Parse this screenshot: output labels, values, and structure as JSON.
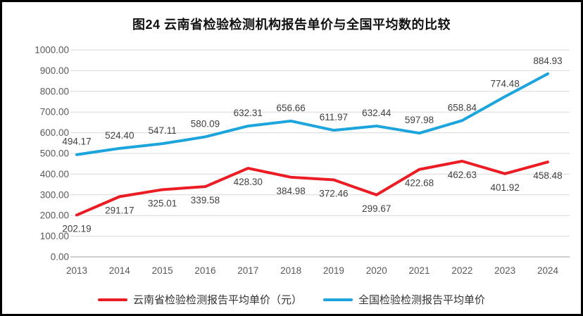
{
  "title": "图24 云南省检验检测机构报告单价与全国平均数的比较",
  "chart_data": {
    "type": "line",
    "title": "图24 云南省检验检测机构报告单价与全国平均数的比较",
    "categories": [
      "2013",
      "2014",
      "2015",
      "2016",
      "2017",
      "2018",
      "2019",
      "2020",
      "2021",
      "2022",
      "2023",
      "2024"
    ],
    "series": [
      {
        "name": "云南省检验检测报告平均单价（元）",
        "color": "#ec1c24",
        "label_position": "below",
        "values": [
          202.19,
          291.17,
          325.01,
          339.58,
          428.3,
          384.98,
          372.46,
          299.67,
          422.68,
          462.63,
          401.92,
          458.48
        ]
      },
      {
        "name": "全国检验检测报告平均单价",
        "color": "#1ca5dd",
        "label_position": "above",
        "values": [
          494.17,
          524.4,
          547.11,
          580.09,
          632.31,
          656.66,
          611.97,
          632.44,
          597.98,
          658.84,
          774.48,
          884.93
        ]
      }
    ],
    "ylim": [
      0,
      1000
    ],
    "y_tick_step": 100,
    "y_tick_labels": [
      "0.00",
      "100.00",
      "200.00",
      "300.00",
      "400.00",
      "500.00",
      "600.00",
      "700.00",
      "800.00",
      "900.00",
      "1000.00"
    ],
    "xlabel": "",
    "ylabel": "",
    "grid": true,
    "legend_position": "bottom",
    "styles": {
      "gridline_color": "#d9d9d9",
      "axis_line_color": "#bfbfbf",
      "tick_label_color": "#595959",
      "data_label_color": "#404040"
    }
  }
}
